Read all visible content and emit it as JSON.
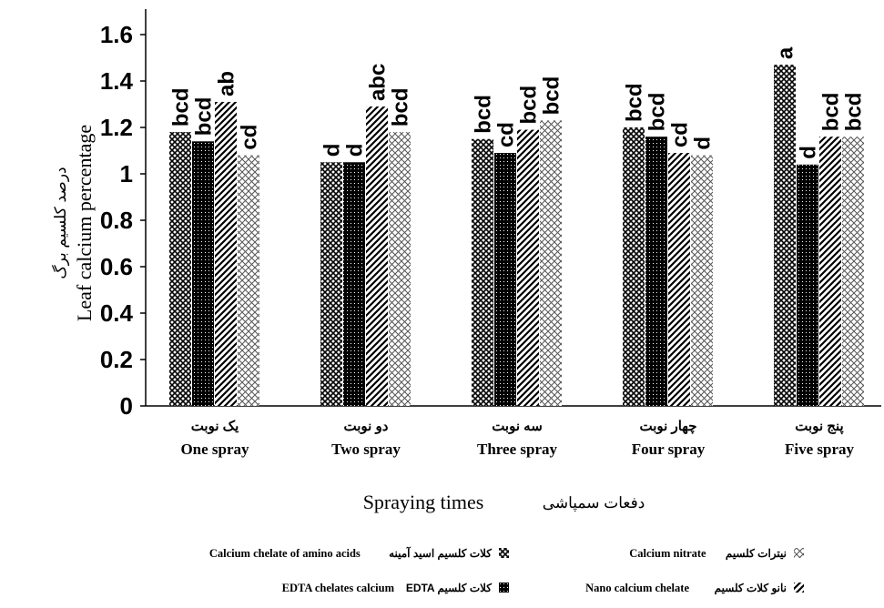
{
  "chart_data": {
    "type": "bar",
    "ylabel_fa": "درصد کلسیم برگ",
    "ylabel": "Leaf calcium percentage",
    "xlabel_fa": "دفعات سمپاشی",
    "xlabel": "Spraying times",
    "ylim": [
      0,
      1.6
    ],
    "yticks": [
      "0",
      "0.2",
      "0.4",
      "0.6",
      "0.8",
      "1",
      "1.2",
      "1.4",
      "1.6"
    ],
    "grid": false,
    "legend_position": "bottom",
    "categories": [
      {
        "fa": "یک نوبت",
        "en": "One spray"
      },
      {
        "fa": "دو نوبت",
        "en": "Two spray"
      },
      {
        "fa": "سه نوبت",
        "en": "Three spray"
      },
      {
        "fa": "چهار نوبت",
        "en": "Four spray"
      },
      {
        "fa": "پنج نوبت",
        "en": "Five spray"
      }
    ],
    "series": [
      {
        "name": "Calcium chelate of amino acids",
        "name_fa": "کلات کلسیم اسید آمینه",
        "values": [
          1.18,
          1.05,
          1.15,
          1.2,
          1.47
        ],
        "labels": [
          "bcd",
          "d",
          "bcd",
          "bcd",
          "a"
        ]
      },
      {
        "name": "EDTA chelates calcium",
        "name_fa": "EDTA کلات کلسیم",
        "values": [
          1.14,
          1.05,
          1.09,
          1.16,
          1.04
        ],
        "labels": [
          "bcd",
          "d",
          "cd",
          "bcd",
          "d"
        ]
      },
      {
        "name": "Nano calcium chelate",
        "name_fa": "نانو کلات کلسیم",
        "values": [
          1.31,
          1.29,
          1.19,
          1.09,
          1.16
        ],
        "labels": [
          "ab",
          "abc",
          "bcd",
          "cd",
          "bcd"
        ]
      },
      {
        "name": "Calcium nitrate",
        "name_fa": "نیترات کلسیم",
        "values": [
          1.08,
          1.18,
          1.23,
          1.08,
          1.16
        ],
        "labels": [
          "cd",
          "bcd",
          "bcd",
          "d",
          "bcd"
        ]
      }
    ]
  }
}
